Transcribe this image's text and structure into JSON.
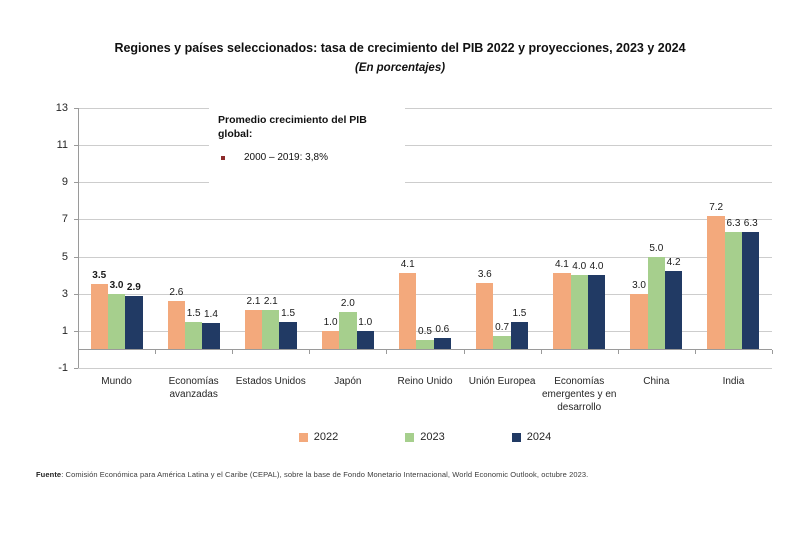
{
  "page": {
    "title": "Regiones y países seleccionados: tasa de crecimiento del PIB 2022 y proyecciones, 2023 y 2024",
    "subtitle": "(En porcentajes)"
  },
  "annotation": {
    "title": "Promedio crecimiento del PIB global:",
    "bullet_text": "2000 – 2019: 3,8%",
    "bullet_color": "#8c2b2b"
  },
  "footer": {
    "prefix": "Fuente",
    "text": ": Comisión Económica para América Latina y el Caribe (CEPAL), sobre la base de Fondo Monetario Internacional, World Economic Outlook, octubre 2023."
  },
  "chart_data": {
    "type": "bar",
    "title": "Regiones y países seleccionados: tasa de crecimiento del PIB 2022 y proyecciones, 2023 y 2024",
    "subtitle": "(En porcentajes)",
    "categories": [
      "Mundo",
      "Economías avanzadas",
      "Estados Unidos",
      "Japón",
      "Reino Unido",
      "Unión Europea",
      "Economías emergentes y en desarrollo",
      "China",
      "India"
    ],
    "series": [
      {
        "name": "2022",
        "color": "#F3A97C",
        "values": [
          3.5,
          2.6,
          2.1,
          1.0,
          4.1,
          3.6,
          4.1,
          3.0,
          7.2
        ]
      },
      {
        "name": "2023",
        "color": "#A6CF8D",
        "values": [
          3.0,
          1.5,
          2.1,
          2.0,
          0.5,
          0.7,
          4.0,
          5.0,
          6.3
        ]
      },
      {
        "name": "2024",
        "color": "#213A64",
        "values": [
          2.9,
          1.4,
          1.5,
          1.0,
          0.6,
          1.5,
          4.0,
          4.2,
          6.3
        ]
      }
    ],
    "ylim": [
      -1,
      13
    ],
    "yticks": [
      13,
      11,
      9,
      7,
      5,
      3,
      1,
      -1
    ],
    "grid": true,
    "legend_position": "bottom",
    "emphasized_category": "Mundo",
    "value_labels": true
  }
}
